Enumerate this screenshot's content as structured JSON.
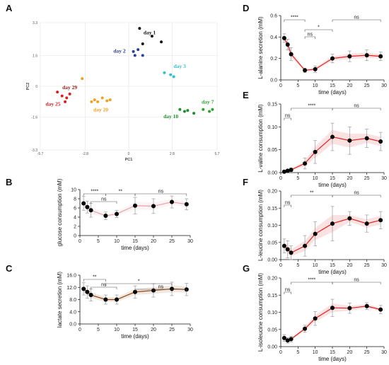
{
  "figure": {
    "panels": [
      "A",
      "B",
      "C",
      "D",
      "E",
      "F",
      "G"
    ]
  },
  "chart_data": [
    {
      "panel": "A",
      "type": "scatter",
      "xlabel": "PC1",
      "ylabel": "PC2",
      "xlim": [
        -5.7,
        5.7
      ],
      "ylim": [
        -3.3,
        3.3
      ],
      "xticks": [
        "-5.7",
        "-2.8",
        "0",
        "2.8",
        "5.7"
      ],
      "yticks": [
        "3.3",
        "1.6",
        "0",
        "-1.6",
        "-3.3"
      ],
      "grid": true,
      "groups": [
        {
          "name": "day 1",
          "color": "#111111",
          "points": [
            [
              0.7,
              3.0
            ],
            [
              1.5,
              2.6
            ],
            [
              0.9,
              2.2
            ],
            [
              2.1,
              2.3
            ]
          ]
        },
        {
          "name": "day 2",
          "color": "#2b3f9c",
          "points": [
            [
              0.3,
              1.8
            ],
            [
              0.6,
              1.9
            ],
            [
              0.4,
              1.6
            ],
            [
              0.9,
              1.6
            ]
          ]
        },
        {
          "name": "day 3",
          "color": "#35c0c8",
          "points": [
            [
              2.3,
              0.7
            ],
            [
              2.7,
              0.6
            ],
            [
              2.9,
              0.5
            ]
          ]
        },
        {
          "name": "day 7",
          "color": "#2fa12f",
          "points": [
            [
              4.8,
              -1.2
            ],
            [
              5.2,
              -1.3
            ],
            [
              5.4,
              -1.2
            ]
          ]
        },
        {
          "name": "day 10",
          "color": "#1e8f2e",
          "points": [
            [
              3.3,
              -1.2
            ],
            [
              3.6,
              -1.3
            ],
            [
              3.8,
              -1.25
            ],
            [
              4.2,
              -1.4
            ]
          ]
        },
        {
          "name": "day 20",
          "color": "#f0a020",
          "points": [
            [
              -3.0,
              0.4
            ],
            [
              -2.2,
              -0.7
            ],
            [
              -2.0,
              -0.8
            ],
            [
              -1.7,
              -0.6
            ],
            [
              -1.4,
              -0.75
            ],
            [
              -1.2,
              -0.7
            ],
            [
              -2.4,
              -0.8
            ]
          ]
        },
        {
          "name": "day 25",
          "color": "#d42222",
          "points": [
            [
              -4.6,
              -0.3
            ],
            [
              -4.3,
              -0.5
            ],
            [
              -4.0,
              -0.6
            ],
            [
              -3.8,
              -0.4
            ],
            [
              -4.1,
              -0.8
            ]
          ]
        },
        {
          "name": "day 29",
          "color": "#a02020",
          "points": []
        }
      ]
    },
    {
      "panel": "B",
      "type": "line",
      "xlabel": "time (days)",
      "ylabel": "glucose consumption (mM)",
      "x": [
        1,
        2,
        3,
        7,
        10,
        15,
        20,
        25,
        29
      ],
      "values": [
        7.0,
        6.2,
        5.5,
        4.3,
        4.7,
        6.5,
        6.4,
        7.3,
        6.8
      ],
      "errors": [
        1.5,
        1.3,
        1.5,
        0.8,
        0.8,
        1.8,
        1.6,
        1.3,
        1.2
      ],
      "xlim": [
        0,
        30
      ],
      "ylim": [
        0,
        10
      ],
      "xticks": [
        0,
        5,
        10,
        15,
        20,
        25,
        30
      ],
      "yticks": [
        0,
        2,
        4,
        6,
        8,
        10
      ],
      "line_color": "#e8a0a8",
      "significance": [
        {
          "from": 1,
          "to": 7,
          "label": "****"
        },
        {
          "from": 3,
          "to": 10,
          "label": "ns"
        },
        {
          "from": 7,
          "to": 15,
          "label": "**"
        },
        {
          "from": 15,
          "to": 29,
          "label": "ns"
        }
      ]
    },
    {
      "panel": "C",
      "type": "line",
      "xlabel": "time (days)",
      "ylabel": "lactate secretion (mM)",
      "x": [
        1,
        2,
        3,
        7,
        10,
        15,
        20,
        25,
        29
      ],
      "values": [
        11.5,
        10.5,
        9.5,
        8.0,
        8.0,
        10.5,
        11.0,
        11.5,
        11.3
      ],
      "errors": [
        2.0,
        2.0,
        2.0,
        1.5,
        1.5,
        2.0,
        2.2,
        2.2,
        2.0
      ],
      "xlim": [
        0,
        30
      ],
      "ylim": [
        0,
        16
      ],
      "xticks": [
        0,
        5,
        10,
        15,
        20,
        25,
        30
      ],
      "yticks": [
        "0.0",
        "4.0",
        "8.0",
        "12.0",
        "16.0"
      ],
      "line_color": "#8b4513",
      "significance": [
        {
          "from": 1,
          "to": 7,
          "label": "**"
        },
        {
          "from": 3,
          "to": 10,
          "label": "ns"
        },
        {
          "from": 7,
          "to": 25,
          "label": "*"
        },
        {
          "from": 15,
          "to": 29,
          "label": "ns"
        }
      ]
    },
    {
      "panel": "D",
      "type": "line",
      "xlabel": "time (days)",
      "ylabel": "L-alanine secretion (mM)",
      "x": [
        1,
        2,
        3,
        7,
        10,
        15,
        20,
        25,
        29
      ],
      "values": [
        0.39,
        0.33,
        0.24,
        0.09,
        0.1,
        0.2,
        0.22,
        0.23,
        0.22
      ],
      "errors": [
        0.04,
        0.05,
        0.06,
        0.02,
        0.03,
        0.04,
        0.05,
        0.05,
        0.04
      ],
      "xlim": [
        0,
        30
      ],
      "ylim": [
        0,
        0.6
      ],
      "xticks": [
        0,
        5,
        10,
        15,
        20,
        25,
        30
      ],
      "yticks": [
        "0.0",
        "0.2",
        "0.4",
        "0.6"
      ],
      "line_color": "#e02020",
      "significance": [
        {
          "from": 1,
          "to": 7,
          "label": "****"
        },
        {
          "from": 7,
          "to": 10,
          "label": "ns"
        },
        {
          "from": 7,
          "to": 15,
          "label": "*"
        },
        {
          "from": 15,
          "to": 29,
          "label": "ns"
        }
      ]
    },
    {
      "panel": "E",
      "type": "line",
      "xlabel": "time (days)",
      "ylabel": "L-valine consumption (mM)",
      "x": [
        1,
        2,
        3,
        7,
        10,
        15,
        20,
        25,
        29
      ],
      "values": [
        0.002,
        0.004,
        0.006,
        0.02,
        0.045,
        0.078,
        0.07,
        0.075,
        0.068
      ],
      "errors": [
        0.003,
        0.003,
        0.004,
        0.012,
        0.025,
        0.03,
        0.03,
        0.02,
        0.02
      ],
      "xlim": [
        0,
        30
      ],
      "ylim": [
        0,
        0.15
      ],
      "xticks": [
        0,
        5,
        10,
        15,
        20,
        25,
        30
      ],
      "yticks": [
        "0.00",
        "0.05",
        "0.10",
        "0.15"
      ],
      "line_color": "#e02020",
      "significance": [
        {
          "from": 1,
          "to": 3,
          "label": "ns"
        },
        {
          "from": 3,
          "to": 15,
          "label": "****"
        },
        {
          "from": 15,
          "to": 29,
          "label": "ns"
        }
      ]
    },
    {
      "panel": "F",
      "type": "line",
      "xlabel": "time (days)",
      "ylabel": "L-leucine consumption (mM)",
      "x": [
        1,
        2,
        3,
        7,
        10,
        15,
        20,
        25,
        29
      ],
      "values": [
        0.04,
        0.03,
        0.02,
        0.04,
        0.075,
        0.105,
        0.12,
        0.105,
        0.115
      ],
      "errors": [
        0.02,
        0.025,
        0.02,
        0.03,
        0.035,
        0.05,
        0.02,
        0.025,
        0.025
      ],
      "xlim": [
        0,
        30
      ],
      "ylim": [
        0,
        0.2
      ],
      "xticks": [
        0,
        5,
        10,
        15,
        20,
        25,
        30
      ],
      "yticks": [
        "0.00",
        "0.05",
        "0.10",
        "0.15",
        "0.20"
      ],
      "line_color": "#e02020",
      "significance": [
        {
          "from": 1,
          "to": 3,
          "label": "ns"
        },
        {
          "from": 3,
          "to": 15,
          "label": "**"
        },
        {
          "from": 15,
          "to": 29,
          "label": "ns"
        }
      ]
    },
    {
      "panel": "G",
      "type": "line",
      "xlabel": "time (days)",
      "ylabel": "L-isoleucine consumption (mM)",
      "x": [
        1,
        2,
        3,
        7,
        10,
        15,
        20,
        25,
        29
      ],
      "values": [
        0.025,
        0.018,
        0.022,
        0.052,
        0.082,
        0.113,
        0.112,
        0.118,
        0.108
      ],
      "errors": [
        0.01,
        0.008,
        0.008,
        0.01,
        0.02,
        0.025,
        0.015,
        0.01,
        0.012
      ],
      "xlim": [
        0,
        30
      ],
      "ylim": [
        0,
        0.2
      ],
      "xticks": [
        0,
        5,
        10,
        15,
        20,
        25,
        30
      ],
      "yticks": [
        "0.00",
        "0.05",
        "0.10",
        "0.15",
        "0.20"
      ],
      "line_color": "#e02020",
      "significance": [
        {
          "from": 1,
          "to": 3,
          "label": "ns"
        },
        {
          "from": 3,
          "to": 15,
          "label": "****"
        },
        {
          "from": 15,
          "to": 29,
          "label": "ns"
        }
      ]
    }
  ]
}
